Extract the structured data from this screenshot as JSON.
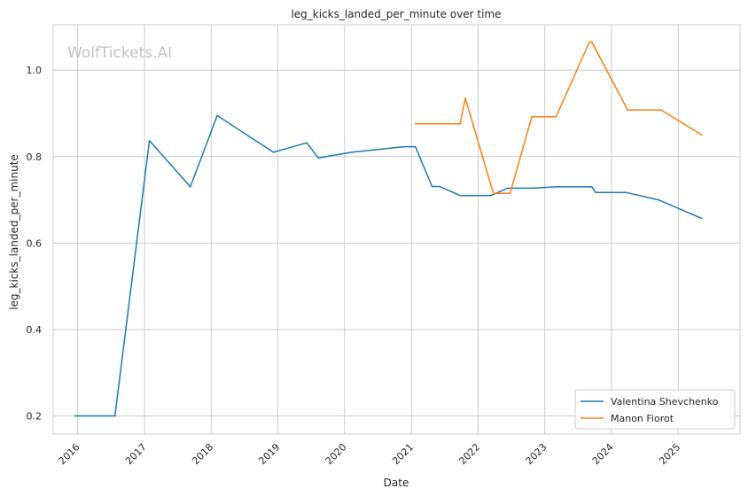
{
  "chart_data": {
    "type": "line",
    "title": "leg_kicks_landed_per_minute over time",
    "xlabel": "Date",
    "ylabel": "leg_kicks_landed_per_minute",
    "watermark": "WolfTickets.AI",
    "x_ticks": [
      "2016",
      "2017",
      "2018",
      "2019",
      "2020",
      "2021",
      "2022",
      "2023",
      "2024",
      "2025"
    ],
    "y_ticks": [
      "0.2",
      "0.4",
      "0.6",
      "0.8",
      "1.0"
    ],
    "xlim": [
      "2015-08-20",
      "2025-12-05"
    ],
    "ylim": [
      0.158,
      1.105
    ],
    "grid": true,
    "legend_position": "bottom-right",
    "series": [
      {
        "name": "Valentina Shevchenko",
        "color": "#1f77b4",
        "points": [
          [
            "2015-12-19",
            0.2
          ],
          [
            "2016-07-23",
            0.2
          ],
          [
            "2017-01-28",
            0.837
          ],
          [
            "2017-09-09",
            0.73
          ],
          [
            "2018-02-03",
            0.895
          ],
          [
            "2018-12-08",
            0.81
          ],
          [
            "2019-06-08",
            0.832
          ],
          [
            "2019-08-10",
            0.797
          ],
          [
            "2020-02-08",
            0.81
          ],
          [
            "2020-11-21",
            0.823
          ],
          [
            "2021-01-23",
            0.823
          ],
          [
            "2021-04-24",
            0.731
          ],
          [
            "2021-06-05",
            0.731
          ],
          [
            "2021-09-25",
            0.71
          ],
          [
            "2022-03-12",
            0.71
          ],
          [
            "2022-06-11",
            0.727
          ],
          [
            "2022-10-22",
            0.727
          ],
          [
            "2023-03-04",
            0.73
          ],
          [
            "2023-09-16",
            0.73
          ],
          [
            "2023-10-07",
            0.717
          ],
          [
            "2024-03-23",
            0.717
          ],
          [
            "2024-09-14",
            0.7
          ],
          [
            "2025-05-10",
            0.657
          ]
        ]
      },
      {
        "name": "Manon Fiorot",
        "color": "#ff7f0e",
        "points": [
          [
            "2021-01-23",
            0.876
          ],
          [
            "2021-09-25",
            0.876
          ],
          [
            "2021-10-23",
            0.935
          ],
          [
            "2022-03-26",
            0.715
          ],
          [
            "2022-06-25",
            0.715
          ],
          [
            "2022-10-22",
            0.892
          ],
          [
            "2023-03-04",
            0.892
          ],
          [
            "2023-09-02",
            1.065
          ],
          [
            "2023-09-16",
            1.065
          ],
          [
            "2024-03-30",
            0.908
          ],
          [
            "2024-09-28",
            0.908
          ],
          [
            "2025-05-10",
            0.85
          ]
        ]
      }
    ]
  }
}
